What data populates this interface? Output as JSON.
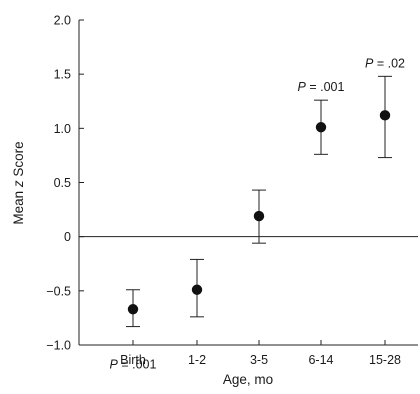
{
  "chart_data": {
    "type": "scatter",
    "title": "",
    "xlabel": "Age, mo",
    "ylabel_prefix": "Mean ",
    "ylabel_italic": "z",
    "ylabel_suffix": " Score",
    "categories": [
      "Birth",
      "1-2",
      "3-5",
      "6-14",
      "15-28"
    ],
    "series": [
      {
        "values": [
          -0.67,
          -0.49,
          0.19,
          1.01,
          1.12
        ],
        "error_low": [
          -0.83,
          -0.74,
          -0.06,
          0.76,
          0.73
        ],
        "error_high": [
          -0.49,
          -0.21,
          0.43,
          1.26,
          1.48
        ]
      }
    ],
    "ylim": [
      -1.0,
      2.0
    ],
    "yticks": [
      -1.0,
      -0.5,
      0,
      0.5,
      1.0,
      1.5,
      2.0
    ],
    "ytick_labels": [
      "−1.0",
      "−0.5",
      "0",
      "0.5",
      "1.0",
      "1.5",
      "2.0"
    ],
    "reference_line_y": 0,
    "annotations": [
      {
        "category": "Birth",
        "position": "below",
        "label_italic": "P",
        "label_text": " = .001"
      },
      {
        "category": "6-14",
        "position": "above",
        "label_italic": "P",
        "label_text": " = .001"
      },
      {
        "category": "15-28",
        "position": "above",
        "label_italic": "P",
        "label_text": " = .02"
      }
    ],
    "grid": false,
    "legend": "none"
  }
}
